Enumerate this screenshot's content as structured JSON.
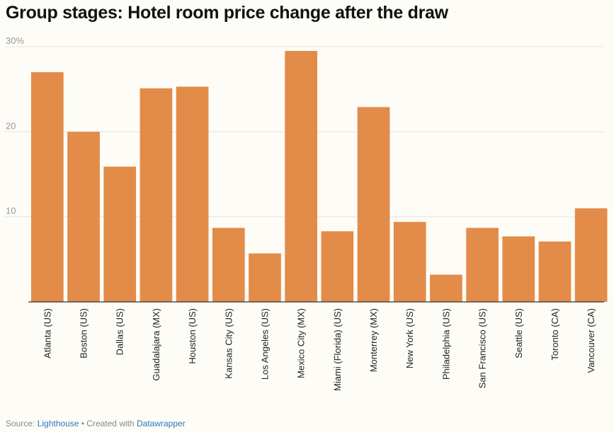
{
  "chart_data": {
    "type": "bar",
    "title": "Group stages: Hotel room price change after the draw",
    "xlabel": "",
    "ylabel": "",
    "ylim": [
      0,
      30
    ],
    "yticks": [
      10,
      20,
      30
    ],
    "ytick_labels": [
      "10",
      "20",
      "30%"
    ],
    "categories": [
      "Atlanta (US)",
      "Boston (US)",
      "Dallas (US)",
      "Guadalajara (MX)",
      "Houston (US)",
      "Kansas City (US)",
      "Los Angeles (US)",
      "Mexico City (MX)",
      "Miami (Florida) (US)",
      "Monterrey (MX)",
      "New York (US)",
      "Philadelphia (US)",
      "San Francisco (US)",
      "Seattle (US)",
      "Toronto (CA)",
      "Vancouver (CA)"
    ],
    "values": [
      27.0,
      20.0,
      15.9,
      25.1,
      25.3,
      8.7,
      5.7,
      29.5,
      8.3,
      22.9,
      9.4,
      3.2,
      8.7,
      7.7,
      7.1,
      11.0
    ],
    "bar_color": "#e38b48",
    "grid": true
  },
  "footer": {
    "source_prefix": "Source: ",
    "source_link": "Lighthouse",
    "separator": " • Created with ",
    "tool_link": "Datawrapper"
  }
}
